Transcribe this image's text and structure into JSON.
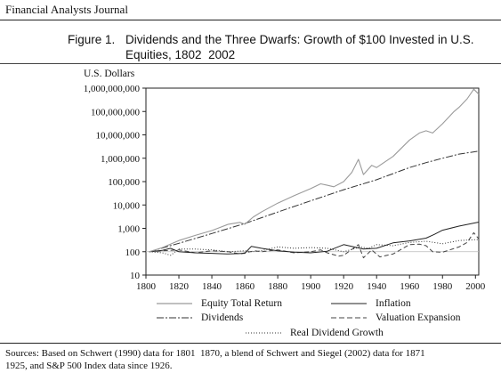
{
  "header": {
    "journal": "Financial Analysts Journal"
  },
  "figure": {
    "number": "Figure 1.",
    "title_line1": "Dividends and the Three Dwarfs: Growth of $100 Invested in U.S.",
    "title_line2": "Equities, 1802  2002"
  },
  "footer": {
    "sources_line1": "Sources: Based on Schwert (1990) data for 1801  1870, a blend of Schwert and Siegel (2002) data for 1871",
    "sources_line2": "1925, and S&P 500 Index data since 1926."
  },
  "colors": {
    "equity": "#9a9a9a",
    "dividends": "#333333",
    "inflation": "#222222",
    "valuation": "#444444",
    "real_div": "#333333",
    "baseline": "#bbbbbb"
  },
  "chart_data": {
    "type": "line",
    "ylabel": "U.S. Dollars",
    "yscale": "log",
    "ylim": [
      10,
      1000000000
    ],
    "xlim": [
      1800,
      2002
    ],
    "x_ticks": [
      1800,
      1820,
      1840,
      1860,
      1880,
      1900,
      1920,
      1940,
      1960,
      1980,
      2000
    ],
    "y_ticks": [
      10,
      100,
      1000,
      10000,
      100000,
      1000000,
      10000000,
      100000000,
      1000000000
    ],
    "y_tick_labels": [
      "10",
      "100",
      "1,000",
      "10,000",
      "100,000",
      "1,000,000",
      "10,000,000",
      "100,000,000",
      "1,000,000,000"
    ],
    "legend": [
      {
        "key": "equity",
        "label": "Equity Total Return"
      },
      {
        "key": "inflation",
        "label": "Inflation"
      },
      {
        "key": "dividends",
        "label": "Dividends"
      },
      {
        "key": "valuation",
        "label": "Valuation Expansion"
      },
      {
        "key": "real_div",
        "label": "Real Dividend Growth"
      }
    ],
    "series": [
      {
        "key": "equity",
        "name": "Equity Total Return",
        "style": "solid",
        "points": [
          [
            1802,
            100
          ],
          [
            1810,
            150
          ],
          [
            1820,
            300
          ],
          [
            1830,
            500
          ],
          [
            1840,
            800
          ],
          [
            1850,
            1500
          ],
          [
            1857,
            1800
          ],
          [
            1860,
            1500
          ],
          [
            1865,
            3000
          ],
          [
            1870,
            5000
          ],
          [
            1880,
            12000
          ],
          [
            1890,
            25000
          ],
          [
            1900,
            50000
          ],
          [
            1906,
            80000
          ],
          [
            1910,
            70000
          ],
          [
            1914,
            60000
          ],
          [
            1920,
            100000
          ],
          [
            1925,
            250000
          ],
          [
            1929,
            900000
          ],
          [
            1932,
            200000
          ],
          [
            1937,
            500000
          ],
          [
            1940,
            400000
          ],
          [
            1950,
            1200000
          ],
          [
            1960,
            6000000
          ],
          [
            1966,
            12000000
          ],
          [
            1970,
            15000000
          ],
          [
            1974,
            12000000
          ],
          [
            1980,
            30000000
          ],
          [
            1987,
            100000000
          ],
          [
            1990,
            150000000
          ],
          [
            1995,
            350000000
          ],
          [
            1999,
            900000000
          ],
          [
            2002,
            550000000
          ]
        ]
      },
      {
        "key": "dividends",
        "name": "Dividends",
        "style": "dashdot",
        "points": [
          [
            1802,
            100
          ],
          [
            1820,
            230
          ],
          [
            1840,
            600
          ],
          [
            1860,
            1600
          ],
          [
            1880,
            5000
          ],
          [
            1900,
            15000
          ],
          [
            1920,
            45000
          ],
          [
            1940,
            120000
          ],
          [
            1960,
            400000
          ],
          [
            1970,
            650000
          ],
          [
            1980,
            1000000
          ],
          [
            1990,
            1500000
          ],
          [
            2002,
            2000000
          ]
        ]
      },
      {
        "key": "inflation",
        "name": "Inflation",
        "style": "solid",
        "points": [
          [
            1802,
            100
          ],
          [
            1810,
            115
          ],
          [
            1815,
            140
          ],
          [
            1820,
            100
          ],
          [
            1830,
            90
          ],
          [
            1840,
            85
          ],
          [
            1850,
            80
          ],
          [
            1860,
            85
          ],
          [
            1864,
            170
          ],
          [
            1870,
            140
          ],
          [
            1880,
            110
          ],
          [
            1890,
            95
          ],
          [
            1900,
            90
          ],
          [
            1910,
            105
          ],
          [
            1920,
            200
          ],
          [
            1932,
            130
          ],
          [
            1940,
            140
          ],
          [
            1950,
            240
          ],
          [
            1960,
            290
          ],
          [
            1970,
            380
          ],
          [
            1975,
            550
          ],
          [
            1980,
            830
          ],
          [
            1990,
            1250
          ],
          [
            2002,
            1850
          ]
        ]
      },
      {
        "key": "valuation",
        "name": "Valuation Expansion",
        "style": "dashed",
        "points": [
          [
            1802,
            100
          ],
          [
            1810,
            110
          ],
          [
            1820,
            120
          ],
          [
            1830,
            90
          ],
          [
            1840,
            110
          ],
          [
            1850,
            100
          ],
          [
            1857,
            80
          ],
          [
            1860,
            90
          ],
          [
            1866,
            110
          ],
          [
            1870,
            100
          ],
          [
            1880,
            120
          ],
          [
            1890,
            90
          ],
          [
            1900,
            100
          ],
          [
            1906,
            120
          ],
          [
            1910,
            90
          ],
          [
            1917,
            65
          ],
          [
            1920,
            70
          ],
          [
            1929,
            200
          ],
          [
            1932,
            55
          ],
          [
            1937,
            120
          ],
          [
            1942,
            60
          ],
          [
            1950,
            80
          ],
          [
            1960,
            200
          ],
          [
            1966,
            210
          ],
          [
            1970,
            180
          ],
          [
            1974,
            100
          ],
          [
            1980,
            95
          ],
          [
            1990,
            160
          ],
          [
            1995,
            250
          ],
          [
            1999,
            650
          ],
          [
            2002,
            350
          ]
        ]
      },
      {
        "key": "real_div",
        "name": "Real Dividend Growth",
        "style": "dotted",
        "points": [
          [
            1802,
            100
          ],
          [
            1810,
            90
          ],
          [
            1815,
            70
          ],
          [
            1820,
            130
          ],
          [
            1830,
            130
          ],
          [
            1840,
            120
          ],
          [
            1850,
            100
          ],
          [
            1860,
            110
          ],
          [
            1864,
            100
          ],
          [
            1870,
            110
          ],
          [
            1880,
            160
          ],
          [
            1890,
            140
          ],
          [
            1900,
            150
          ],
          [
            1910,
            140
          ],
          [
            1920,
            100
          ],
          [
            1930,
            160
          ],
          [
            1935,
            140
          ],
          [
            1940,
            200
          ],
          [
            1950,
            180
          ],
          [
            1960,
            250
          ],
          [
            1970,
            280
          ],
          [
            1980,
            220
          ],
          [
            1990,
            300
          ],
          [
            2002,
            330
          ]
        ]
      }
    ]
  }
}
